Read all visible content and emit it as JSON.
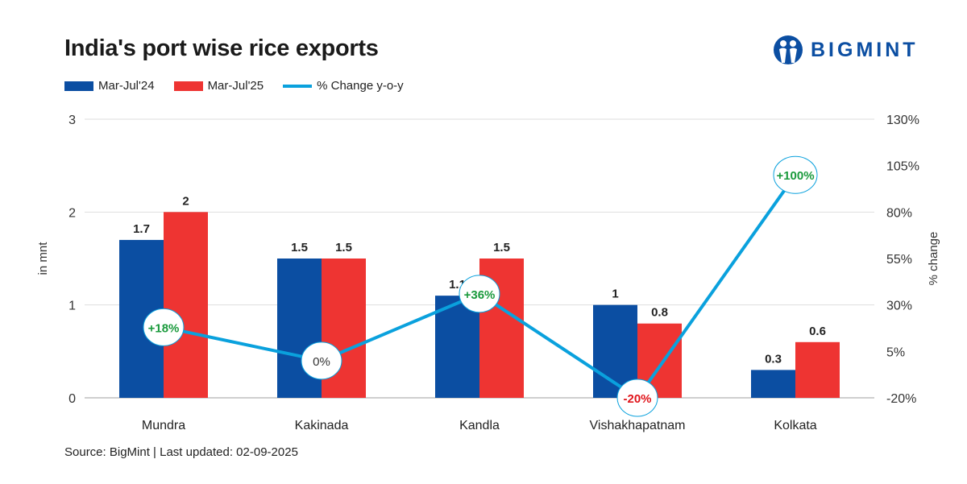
{
  "title": "India's port wise rice exports",
  "logo": {
    "text": "BIGMINT",
    "icon": "bigmint-people-icon"
  },
  "source": "Source: BigMint | Last updated: 02-09-2025",
  "colors": {
    "series1": "#0b4ea2",
    "series2": "#ee3432",
    "line": "#0aa1dd",
    "positive": "#1a9a3c",
    "negative": "#e0151b",
    "neutral": "#333333"
  },
  "chart_data": {
    "type": "bar",
    "categories": [
      "Mundra",
      "Kakinada",
      "Kandla",
      "Vishakhapatnam",
      "Kolkata"
    ],
    "series": [
      {
        "name": "Mar-Jul'24",
        "type": "bar",
        "axis": "left",
        "values": [
          1.7,
          1.5,
          1.1,
          1,
          0.3
        ],
        "labels": [
          "1.7",
          "1.5",
          "1.1",
          "1",
          "0.3"
        ]
      },
      {
        "name": "Mar-Jul'25",
        "type": "bar",
        "axis": "left",
        "values": [
          2,
          1.5,
          1.5,
          0.8,
          0.6
        ],
        "labels": [
          "2",
          "1.5",
          "1.5",
          "0.8",
          "0.6"
        ]
      },
      {
        "name": "% Change y-o-y",
        "type": "line",
        "axis": "right",
        "values": [
          18,
          0,
          36,
          -20,
          100
        ],
        "labels": [
          "+18%",
          "0%",
          "+36%",
          "-20%",
          "+100%"
        ]
      }
    ],
    "ylabel": "in mnt",
    "y2label": "% change",
    "ylim": [
      0,
      3
    ],
    "yticks": [
      "0",
      "1",
      "2",
      "3"
    ],
    "y2lim": [
      -20,
      130
    ],
    "y2ticks": [
      "-20%",
      "5%",
      "30%",
      "55%",
      "80%",
      "105%",
      "130%"
    ],
    "grid": true,
    "legend": "top-left"
  }
}
